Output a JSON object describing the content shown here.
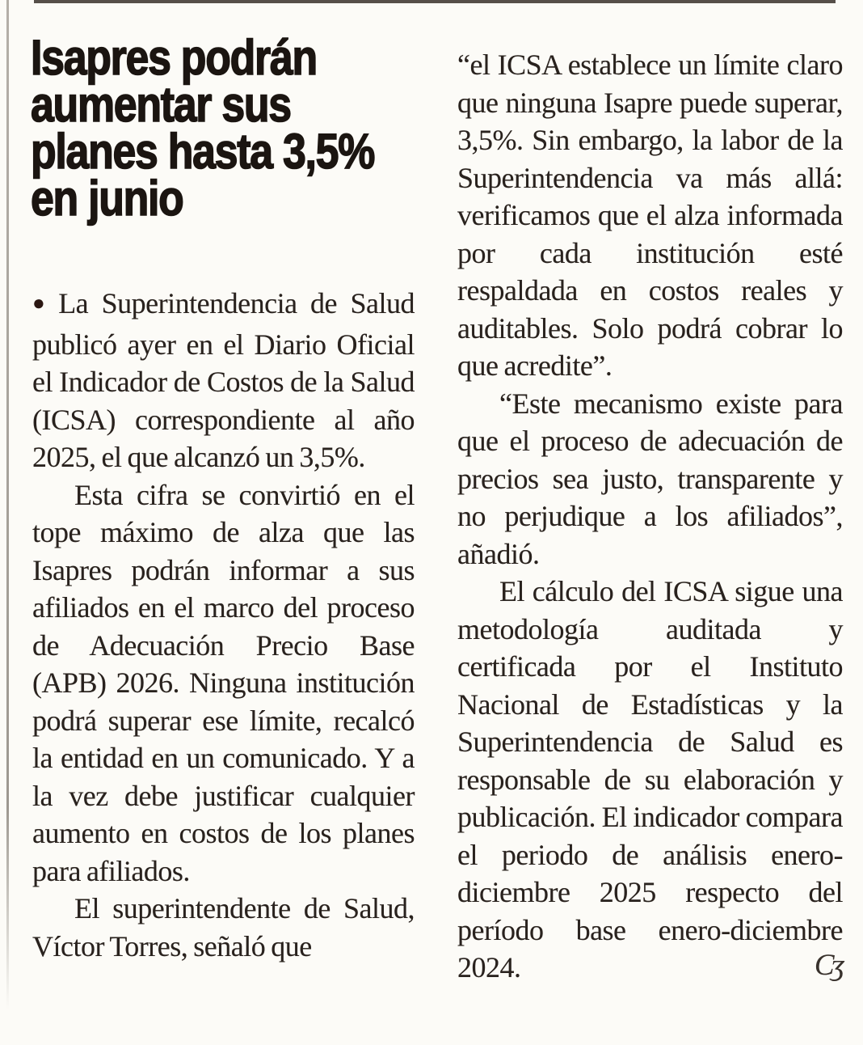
{
  "article": {
    "headline_lines": [
      "Isapres podrán",
      "aumentar sus",
      "planes hasta 3,5%",
      "en junio"
    ],
    "bullet_glyph": "●",
    "end_mark": "Cʒ",
    "columns": {
      "left": {
        "paragraphs": [
          {
            "bullet": "●",
            "text": "La Superintendencia de Salud publicó ayer en el Diario Oficial el Indicador de Costos de la Salud (ICSA) correspondiente al año 2025, el que alcanzó un 3,5%."
          },
          {
            "text": "Esta cifra se convirtió en el tope máximo de alza que las Isapres podrán informar a sus afiliados en el marco del proceso de Adecuación Precio Base (APB) 2026. Ninguna institución podrá superar ese límite, recalcó la entidad en un comunicado. Y a la vez debe justificar cualquier aumento en costos de los planes para afiliados."
          },
          {
            "text": "El superintendente de Salud, Víctor Torres, señaló que"
          }
        ]
      },
      "right": {
        "paragraphs": [
          {
            "text": "“el ICSA establece un límite claro que ninguna Isapre puede superar, 3,5%. Sin embargo, la labor de la Superintendencia va más allá: verificamos que el alza informada por cada institución esté respaldada en costos reales y auditables. Solo podrá cobrar lo que acredite”."
          },
          {
            "text": "“Este mecanismo existe para que el proceso de adecuación de precios sea justo, transparente y no perjudique a los afiliados”, añadió."
          },
          {
            "text": "El cálculo del ICSA sigue una metodología auditada y certificada por el Instituto Nacional de Estadísticas y la Superintendencia de Salud es responsable de su elaboración y publicación. El indicador compara el periodo de análisis enero-diciembre 2025 respecto del período base enero-diciembre 2024.",
            "end_mark": "Cʒ"
          }
        ]
      }
    }
  }
}
